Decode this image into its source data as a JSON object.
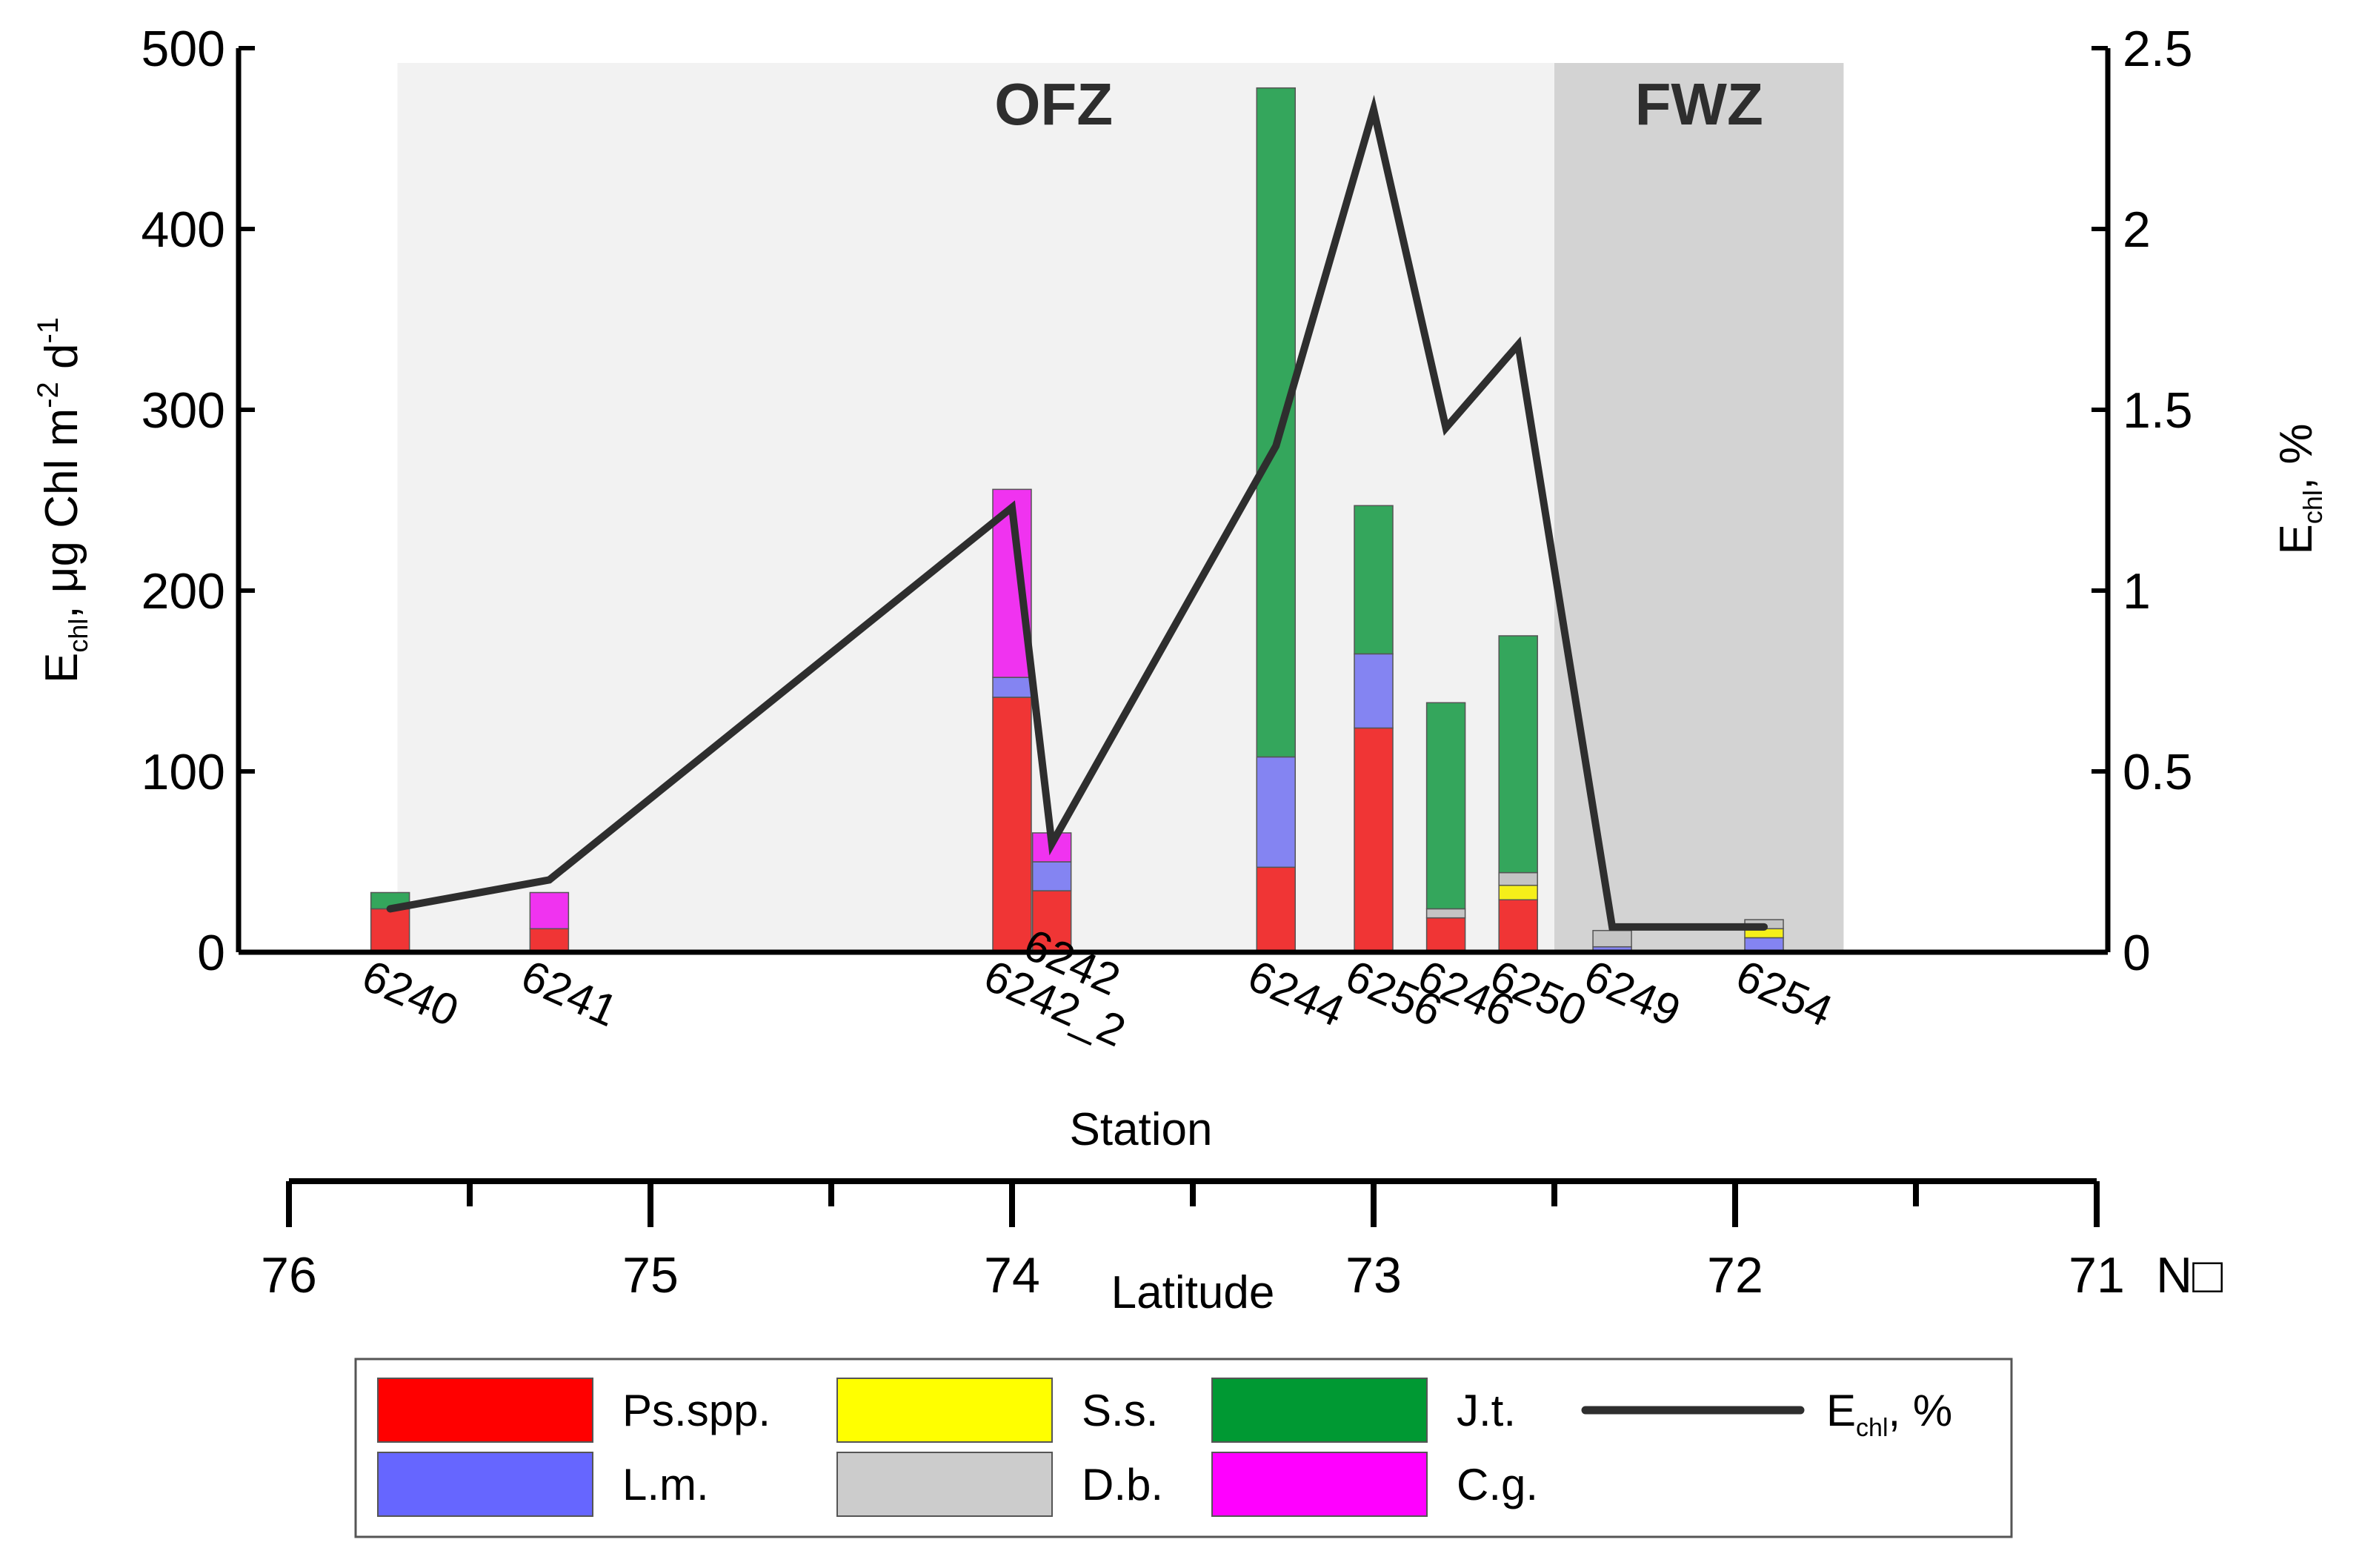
{
  "chart_data": {
    "type": "bar",
    "subtype": "stacked bar with overlaid line (secondary y-axis) and latitude axis",
    "x": {
      "title": "Station",
      "latitude_axis": {
        "title": "Latitude",
        "unit_label": "N□",
        "range": [
          76,
          71
        ],
        "major_ticks": [
          76,
          75,
          74,
          73,
          72,
          71
        ],
        "minor_ticks": [
          75.5,
          74.5,
          73.5,
          72.5,
          71.5
        ]
      }
    },
    "y_left": {
      "title_main": "E",
      "title_sub": "chl",
      "title_rest": ", μg Chl m",
      "title_sup1": "-2",
      "title_mid": " d",
      "title_sup2": "-1",
      "range": [
        0,
        500
      ],
      "ticks": [
        0,
        100,
        200,
        300,
        400,
        500
      ]
    },
    "y_right": {
      "title_main": "E",
      "title_sub": "chl",
      "title_rest": ", %",
      "range": [
        0,
        2.5
      ],
      "ticks": [
        "0",
        "0.5",
        "1",
        "1.5",
        "2",
        "2.5"
      ]
    },
    "zones": [
      {
        "name": "OFZ",
        "lat_from": 75.7,
        "lat_to": 72.5,
        "color": "#f2f2f2"
      },
      {
        "name": "FWZ",
        "lat_from": 72.5,
        "lat_to": 71.7,
        "color": "#d3d3d3"
      }
    ],
    "species": [
      {
        "key": "ps",
        "name": "Ps.spp.",
        "color": "#ff0000",
        "bar_color": "#f03535"
      },
      {
        "key": "lm",
        "name": "L.m.",
        "color": "#6666ff",
        "bar_color": "#8484f2"
      },
      {
        "key": "ss",
        "name": "S.s.",
        "color": "#ffff00",
        "bar_color": "#f5ef1a"
      },
      {
        "key": "db",
        "name": "D.b.",
        "color": "#cccccc",
        "bar_color": "#c4c4c4"
      },
      {
        "key": "jt",
        "name": "J.t.",
        "color": "#009933",
        "bar_color": "#34a65c"
      },
      {
        "key": "cg",
        "name": "C.g.",
        "color": "#ff00ff",
        "bar_color": "#f033f0"
      }
    ],
    "stations": [
      {
        "name": "6240",
        "lat": 75.72,
        "ps": 24,
        "lm": 0,
        "ss": 0,
        "db": 0,
        "jt": 9,
        "cg": 0,
        "echl_pct": 0.12
      },
      {
        "name": "6241",
        "lat": 75.28,
        "ps": 13,
        "lm": 0,
        "ss": 0,
        "db": 0,
        "jt": 0,
        "cg": 20,
        "echl_pct": 0.2
      },
      {
        "name": "6242_2",
        "lat": 74.0,
        "ps": 141,
        "lm": 11,
        "ss": 0,
        "db": 0,
        "jt": 0,
        "cg": 104,
        "echl_pct": 1.23
      },
      {
        "name": "6242",
        "lat": 73.89,
        "ps": 34,
        "lm": 16,
        "ss": 0,
        "db": 0,
        "jt": 0,
        "cg": 16,
        "echl_pct": 0.3
      },
      {
        "name": "6244",
        "lat": 73.27,
        "ps": 47,
        "lm": 61,
        "ss": 0,
        "db": 0,
        "jt": 370,
        "cg": 0,
        "echl_pct": 1.4
      },
      {
        "name": "6256",
        "lat": 73.0,
        "ps": 124,
        "lm": 41,
        "ss": 0,
        "db": 0,
        "jt": 82,
        "cg": 0,
        "echl_pct": 2.33
      },
      {
        "name": "6246",
        "lat": 72.8,
        "ps": 19,
        "lm": 0,
        "ss": 0,
        "db": 5,
        "jt": 114,
        "cg": 0,
        "echl_pct": 1.45
      },
      {
        "name": "6250",
        "lat": 72.6,
        "ps": 29,
        "lm": 0,
        "ss": 8,
        "db": 7,
        "jt": 131,
        "cg": 0,
        "echl_pct": 1.68
      },
      {
        "name": "6249",
        "lat": 72.34,
        "ps": 0,
        "lm": 3,
        "ss": 0,
        "db": 9,
        "jt": 0,
        "cg": 0,
        "echl_pct": 0.07
      },
      {
        "name": "6254",
        "lat": 71.92,
        "ps": 0,
        "lm": 8,
        "ss": 5,
        "db": 5,
        "jt": 0,
        "cg": 0,
        "echl_pct": 0.07
      }
    ],
    "line": {
      "name_main": "E",
      "name_sub": "chl",
      "name_rest": ", %",
      "color": "#2e2e2e"
    }
  }
}
